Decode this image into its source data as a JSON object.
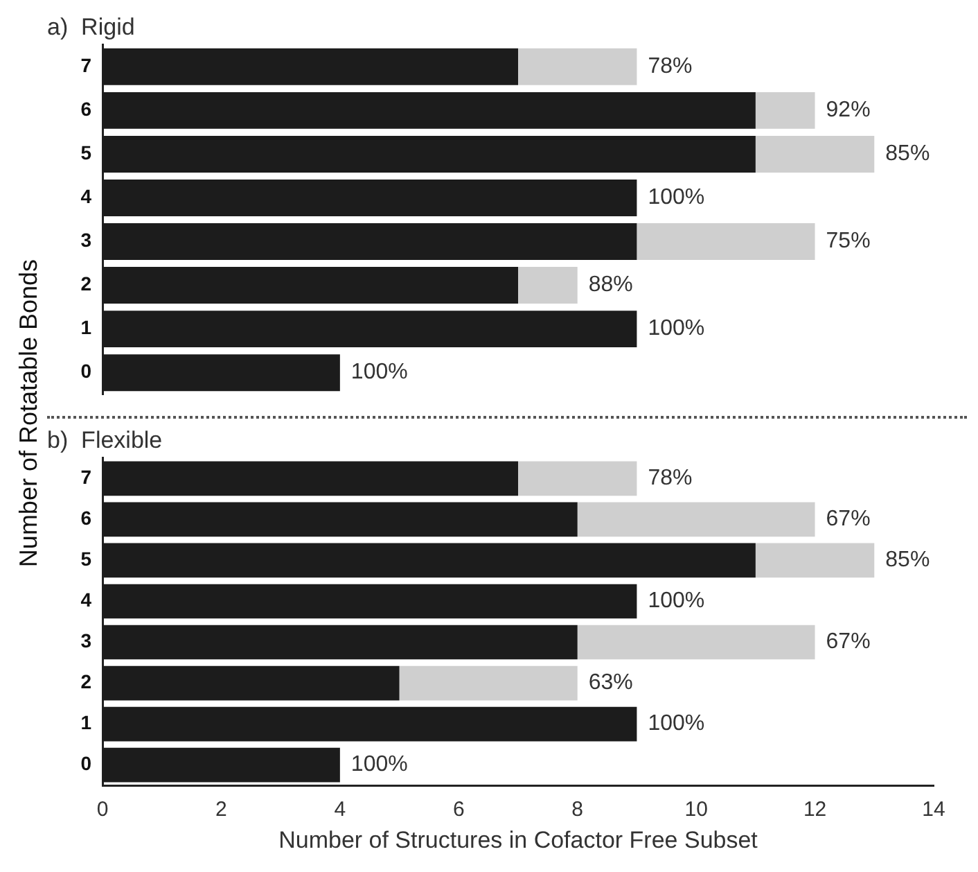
{
  "chart_data": [
    {
      "type": "bar",
      "title": "a)  Rigid",
      "ylabel": "Number of Rotatable Bonds",
      "orientation": "horizontal",
      "stacked": true,
      "categories": [
        "7",
        "6",
        "5",
        "4",
        "3",
        "2",
        "1",
        "0"
      ],
      "xlim": [
        0,
        14
      ],
      "xticks": [
        0,
        2,
        4,
        6,
        8,
        10,
        12,
        14
      ],
      "tick_labels": "y",
      "grid": false,
      "legend": false,
      "series": [
        {
          "color": "#1c1c1c",
          "values": [
            7,
            11,
            11,
            9,
            9,
            7,
            9,
            4
          ]
        },
        {
          "color": "#cfcfcf",
          "values": [
            2,
            1,
            2,
            0,
            3,
            1,
            0,
            0
          ]
        }
      ],
      "annotations": [
        {
          "text": "78%",
          "x": 9,
          "y": "7"
        },
        {
          "text": "92%",
          "x": 12,
          "y": "6"
        },
        {
          "text": "85%",
          "x": 13,
          "y": "5"
        },
        {
          "text": "100%",
          "x": 9,
          "y": "4"
        },
        {
          "text": "75%",
          "x": 12,
          "y": "3"
        },
        {
          "text": "88%",
          "x": 8,
          "y": "2"
        },
        {
          "text": "100%",
          "x": 9,
          "y": "1"
        },
        {
          "text": "100%",
          "x": 4,
          "y": "0"
        }
      ]
    },
    {
      "type": "bar",
      "title": "b)  Flexible",
      "xlabel": "Number of Structures in Cofactor Free Subset",
      "orientation": "horizontal",
      "stacked": true,
      "categories": [
        "7",
        "6",
        "5",
        "4",
        "3",
        "2",
        "1",
        "0"
      ],
      "xlim": [
        0,
        14
      ],
      "xticks": [
        0,
        2,
        4,
        6,
        8,
        10,
        12,
        14
      ],
      "grid": false,
      "legend": false,
      "series": [
        {
          "color": "#1c1c1c",
          "values": [
            7,
            8,
            11,
            9,
            8,
            5,
            9,
            4
          ]
        },
        {
          "color": "#cfcfcf",
          "values": [
            2,
            4,
            2,
            0,
            4,
            3,
            0,
            0
          ]
        }
      ],
      "annotations": [
        {
          "text": "78%",
          "x": 9,
          "y": "7"
        },
        {
          "text": "67%",
          "x": 12,
          "y": "6"
        },
        {
          "text": "85%",
          "x": 13,
          "y": "5"
        },
        {
          "text": "100%",
          "x": 9,
          "y": "4"
        },
        {
          "text": "67%",
          "x": 12,
          "y": "3"
        },
        {
          "text": "63%",
          "x": 8,
          "y": "2"
        },
        {
          "text": "100%",
          "x": 9,
          "y": "1"
        },
        {
          "text": "100%",
          "x": 4,
          "y": "0"
        }
      ]
    }
  ]
}
